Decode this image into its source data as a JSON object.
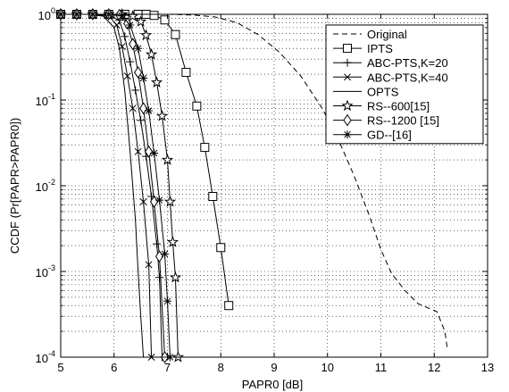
{
  "chart_data": {
    "type": "line",
    "xlabel": "PAPR0 [dB]",
    "ylabel": "CCDF (Pr[PAPR>PAPR0])",
    "xlim": [
      5,
      13
    ],
    "ylim": [
      0.0001,
      1
    ],
    "yscale": "log",
    "grid": true,
    "legend_position": "top-right",
    "x_ticks": [
      "5",
      "6",
      "7",
      "8",
      "9",
      "10",
      "11",
      "12",
      "13"
    ],
    "y_ticks": [
      {
        "mant": "10",
        "exp": "0"
      },
      {
        "mant": "10",
        "exp": "-1"
      },
      {
        "mant": "10",
        "exp": "-2"
      },
      {
        "mant": "10",
        "exp": "-3"
      },
      {
        "mant": "10",
        "exp": "-4"
      }
    ],
    "series": [
      {
        "name": "Original",
        "style": "dashed",
        "marker": "none",
        "x": [
          5.0,
          7.0,
          7.5,
          7.9,
          8.3,
          8.7,
          9.1,
          9.5,
          9.9,
          10.2,
          10.5,
          10.8,
          11.0,
          11.2,
          11.45,
          11.7,
          12.05,
          12.2,
          12.25
        ],
        "y": [
          1.0,
          1.0,
          0.98,
          0.93,
          0.8,
          0.58,
          0.36,
          0.19,
          0.08,
          0.035,
          0.013,
          0.0042,
          0.0018,
          0.00095,
          0.0006,
          0.00042,
          0.00034,
          0.0002,
          0.00012
        ]
      },
      {
        "name": "IPTS",
        "style": "solid",
        "marker": "square",
        "x": [
          5.0,
          5.3,
          5.6,
          5.9,
          6.2,
          6.45,
          6.6,
          6.75,
          6.95,
          7.15,
          7.35,
          7.55,
          7.7,
          7.85,
          8.0,
          8.15
        ],
        "y": [
          1.0,
          1.0,
          1.0,
          1.0,
          1.0,
          1.0,
          1.0,
          0.97,
          0.86,
          0.58,
          0.21,
          0.085,
          0.028,
          0.0075,
          0.0019,
          0.0004
        ]
      },
      {
        "name": "ABC-PTS,K=20",
        "style": "solid",
        "marker": "plus",
        "x": [
          5.0,
          5.3,
          5.6,
          5.9,
          6.1,
          6.2,
          6.3,
          6.4,
          6.5,
          6.6,
          6.7,
          6.8,
          6.85,
          6.9
        ],
        "y": [
          1.0,
          1.0,
          1.0,
          0.98,
          0.85,
          0.55,
          0.28,
          0.13,
          0.058,
          0.022,
          0.0075,
          0.0021,
          0.00085,
          0.0001
        ]
      },
      {
        "name": "ABC-PTS,K=40",
        "style": "solid",
        "marker": "x",
        "x": [
          5.0,
          5.3,
          5.6,
          5.9,
          6.05,
          6.15,
          6.25,
          6.35,
          6.45,
          6.55,
          6.65,
          6.7
        ],
        "y": [
          1.0,
          1.0,
          1.0,
          0.96,
          0.75,
          0.42,
          0.19,
          0.08,
          0.025,
          0.0065,
          0.0012,
          0.0001
        ]
      },
      {
        "name": "OPTS",
        "style": "solid",
        "marker": "none",
        "x": [
          5.0,
          5.5,
          5.8,
          6.0,
          6.1,
          6.2,
          6.3,
          6.4,
          6.45,
          6.5,
          6.55
        ],
        "y": [
          1.0,
          1.0,
          0.95,
          0.7,
          0.4,
          0.13,
          0.025,
          0.004,
          0.001,
          0.0003,
          0.0001
        ]
      },
      {
        "name": "RS--600[15]",
        "style": "solid",
        "marker": "star",
        "x": [
          5.0,
          5.3,
          5.6,
          5.9,
          6.15,
          6.35,
          6.5,
          6.6,
          6.7,
          6.8,
          6.9,
          7.0,
          7.05,
          7.1,
          7.15,
          7.2
        ],
        "y": [
          1.0,
          1.0,
          1.0,
          1.0,
          1.0,
          0.95,
          0.82,
          0.57,
          0.34,
          0.16,
          0.065,
          0.02,
          0.0065,
          0.0022,
          0.00085,
          0.0001
        ]
      },
      {
        "name": "RS--1200 [15]",
        "style": "solid",
        "marker": "diamond",
        "x": [
          5.0,
          5.3,
          5.6,
          5.9,
          6.1,
          6.25,
          6.35,
          6.45,
          6.55,
          6.65,
          6.75,
          6.85,
          6.95
        ],
        "y": [
          1.0,
          1.0,
          1.0,
          1.0,
          0.98,
          0.78,
          0.45,
          0.21,
          0.08,
          0.025,
          0.0065,
          0.0015,
          0.0001
        ]
      },
      {
        "name": "GD--[16]",
        "style": "solid",
        "marker": "asterisk",
        "x": [
          5.0,
          5.3,
          5.6,
          5.9,
          6.15,
          6.3,
          6.45,
          6.55,
          6.65,
          6.75,
          6.85,
          6.95,
          7.0,
          7.05
        ],
        "y": [
          1.0,
          1.0,
          1.0,
          1.0,
          0.96,
          0.75,
          0.4,
          0.18,
          0.075,
          0.024,
          0.0068,
          0.0016,
          0.00045,
          0.0001
        ]
      }
    ]
  }
}
